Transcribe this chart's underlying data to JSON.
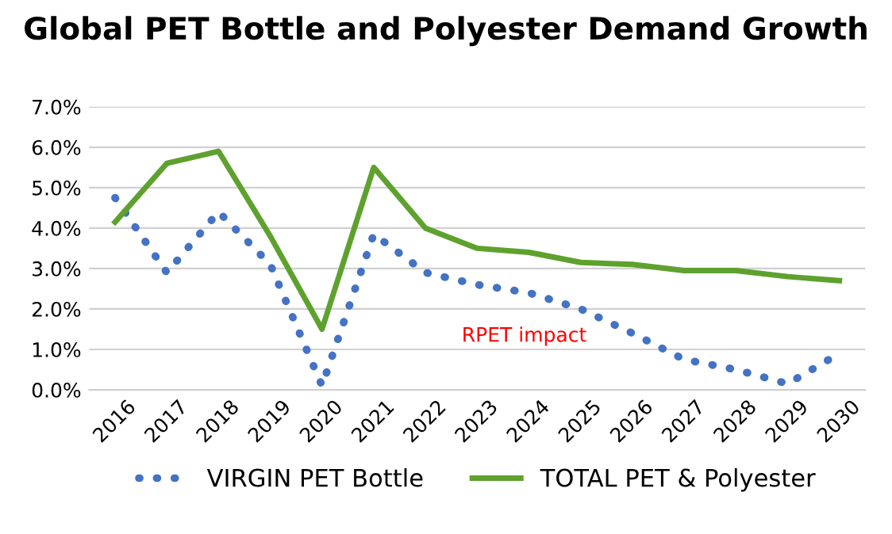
{
  "chart_data": {
    "type": "line",
    "title": "Global PET Bottle and Polyester Demand Growth",
    "categories": [
      "2016",
      "2017",
      "2018",
      "2019",
      "2020",
      "2021",
      "2022",
      "2023",
      "2024",
      "2025",
      "2026",
      "2027",
      "2028",
      "2029",
      "2030"
    ],
    "series": [
      {
        "name": "VIRGIN PET Bottle",
        "color": "#4472c4",
        "line_style": "dotted",
        "values": [
          4.75,
          2.9,
          4.4,
          3.1,
          0.1,
          3.85,
          2.9,
          2.6,
          2.4,
          2.0,
          1.4,
          0.75,
          0.5,
          0.15,
          0.9
        ]
      },
      {
        "name": "TOTAL PET & Polyester",
        "color": "#5ea12e",
        "line_style": "solid",
        "values": [
          4.15,
          5.6,
          5.9,
          3.8,
          1.5,
          5.5,
          4.0,
          3.5,
          3.4,
          3.15,
          3.1,
          2.95,
          2.95,
          2.8,
          2.7
        ]
      }
    ],
    "ylim": [
      0,
      7
    ],
    "yticks": [
      {
        "value": 0,
        "label": "0.0%"
      },
      {
        "value": 1,
        "label": "1.0%"
      },
      {
        "value": 2,
        "label": "2.0%"
      },
      {
        "value": 3,
        "label": "3.0%"
      },
      {
        "value": 4,
        "label": "4.0%"
      },
      {
        "value": 5,
        "label": "5.0%"
      },
      {
        "value": 6,
        "label": "6.0%"
      },
      {
        "value": 7,
        "label": "7.0%"
      }
    ],
    "grid": "y",
    "legend": "bottom",
    "annotations": [
      "RPET impact"
    ]
  }
}
